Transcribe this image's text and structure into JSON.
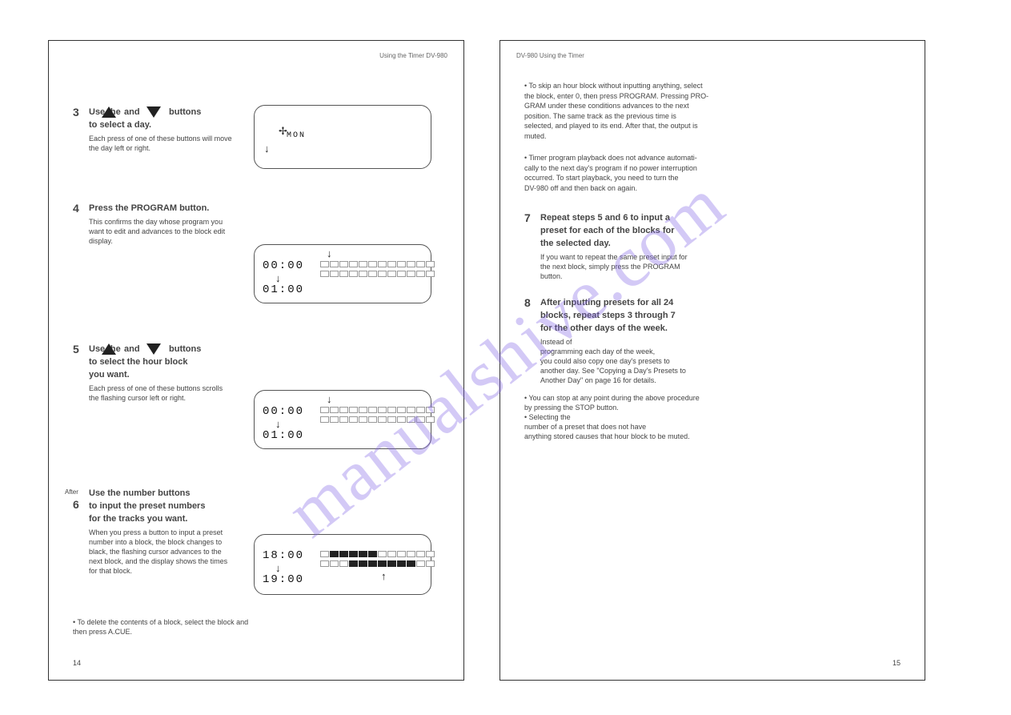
{
  "watermark": "manualshive.com",
  "left": {
    "header": "Using the Timer  DV-980",
    "section1": {
      "step": "3",
      "instr1a": "Use the",
      "instr1b": "and",
      "instr1c": "buttons",
      "instr2": "to select a day.",
      "note": "Each press of one of these buttons will move",
      "note2": "the day left or right."
    },
    "lcd1": {
      "line1": "MON",
      "arrow_row": true
    },
    "section2": {
      "step": "4",
      "instr": "Press the PROGRAM button.",
      "note1": "This confirms the day whose program you",
      "note2": "want to edit and advances to the block edit",
      "note3": "display."
    },
    "lcd2": {
      "start": "00:00",
      "end": "01:00",
      "cells_top_filled": [],
      "cells_bot_filled": []
    },
    "section3": {
      "step": "5",
      "instr1a": "Use the",
      "instr1b": "and",
      "instr1c": "buttons",
      "instr2": "to select the hour block",
      "instr3": "you want.",
      "note1": "Each press of one of these buttons scrolls",
      "note2": "the flashing cursor left or right."
    },
    "lcd3": {
      "start": "00:00",
      "end": "01:00",
      "cells_top_filled": [],
      "cells_bot_filled": []
    },
    "section4": {
      "after": "After",
      "step": "6",
      "instr1": "Use the number buttons",
      "instr2": "to input the preset numbers",
      "instr3": "for the tracks you want.",
      "note1": "When you press a button to input a preset",
      "note2": "number into a block, the block changes to",
      "note3": "black, the flashing cursor advances to the",
      "note4": "next block, and the display shows the times",
      "note5": "for that block."
    },
    "lcd4": {
      "start": "18:00",
      "end": "19:00",
      "cells_top_filled": [
        1,
        2,
        3,
        4,
        5
      ],
      "cells_bot_filled": [
        3,
        4,
        5,
        6,
        7,
        8,
        9
      ]
    },
    "footnote1": "• To delete the contents of a block, select the block and",
    "footnote2": "  then press A.CUE.",
    "pagenum": "14"
  },
  "right": {
    "header": "DV-980  Using the Timer",
    "para1": [
      "• To skip an hour block without inputting anything, select",
      "  the block, enter 0, then press PROGRAM. Pressing PRO-",
      "  GRAM under these conditions advances to the next",
      "  position. The same track as the previous time is",
      "  selected, and played to its end. After that, the output is",
      "  muted."
    ],
    "para2": [
      "• Timer program playback does not advance automati-",
      "  cally to the next day's program if no power interruption",
      "  occurred. To start playback, you need to turn the",
      "  DV-980 off and then back on again."
    ],
    "step7": {
      "num": "7",
      "line1": "Repeat steps 5 and 6 to input a",
      "line2": "preset for each of the blocks for",
      "line3": "the selected day.",
      "note1": "If you want to repeat the same preset input for",
      "note2": "the next block, simply press the PROGRAM",
      "note3": "button."
    },
    "step8": {
      "num": "8",
      "line1": "After inputting presets for all 24",
      "line2": "blocks, repeat steps 3 through 7",
      "line3": "for the other days of the week.",
      "note1": "Instead of",
      "note2": "programming each day of the week,",
      "note3": "you could also copy one day's presets to",
      "note4": "another day. See \"Copying a Day's Presets to",
      "note5": "Another Day\" on page 16 for details.",
      "bullet1": "• You can stop at any point during the above procedure",
      "bullet1b": "  by pressing the STOP button.",
      "bullet2": "• Selecting the",
      "bullet2b": "  number of a preset that does not have",
      "bullet2c": "  anything stored causes that hour block to be muted."
    },
    "pagenum": "15"
  }
}
